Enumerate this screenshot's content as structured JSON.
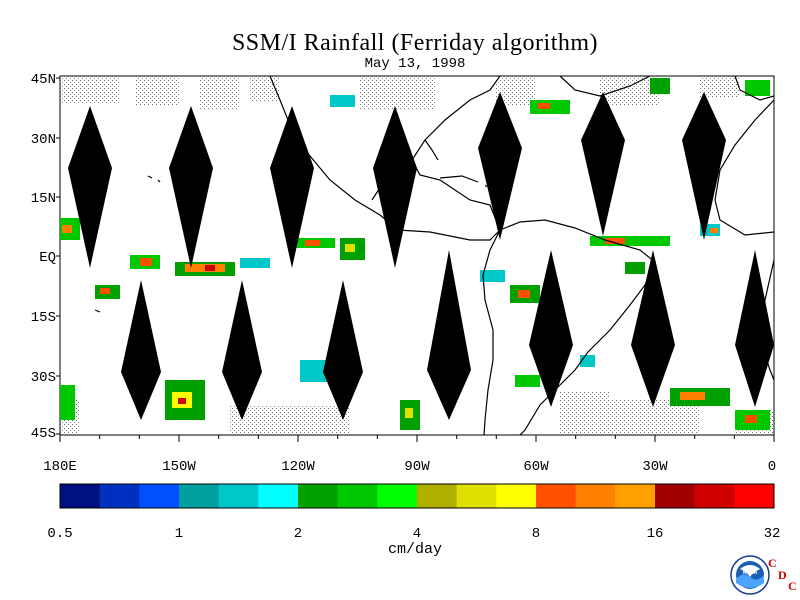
{
  "title": "SSM/I Rainfall (Ferriday algorithm)",
  "date": "May 13, 1998",
  "lat_labels": [
    "45N",
    "30N",
    "15N",
    "EQ",
    "15S",
    "30S",
    "45S"
  ],
  "lon_labels": [
    "180E",
    "150W",
    "120W",
    "90W",
    "60W",
    "30W",
    "0"
  ],
  "colorbar": {
    "colors": [
      "#001080",
      "#0030c0",
      "#0050ff",
      "#00a0a0",
      "#00c8c8",
      "#00ffff",
      "#00a000",
      "#00c800",
      "#00ff00",
      "#b0b000",
      "#e0e000",
      "#ffff00",
      "#ff5000",
      "#ff8000",
      "#ffa000",
      "#a00000",
      "#d00000",
      "#ff0000"
    ],
    "tick_labels": [
      "0.5",
      "1",
      "2",
      "4",
      "8",
      "16",
      "32"
    ],
    "unit": "cm/day"
  },
  "logo": {
    "org_text": "NOAA",
    "lab_letters": [
      "C",
      "D",
      "C"
    ]
  }
}
